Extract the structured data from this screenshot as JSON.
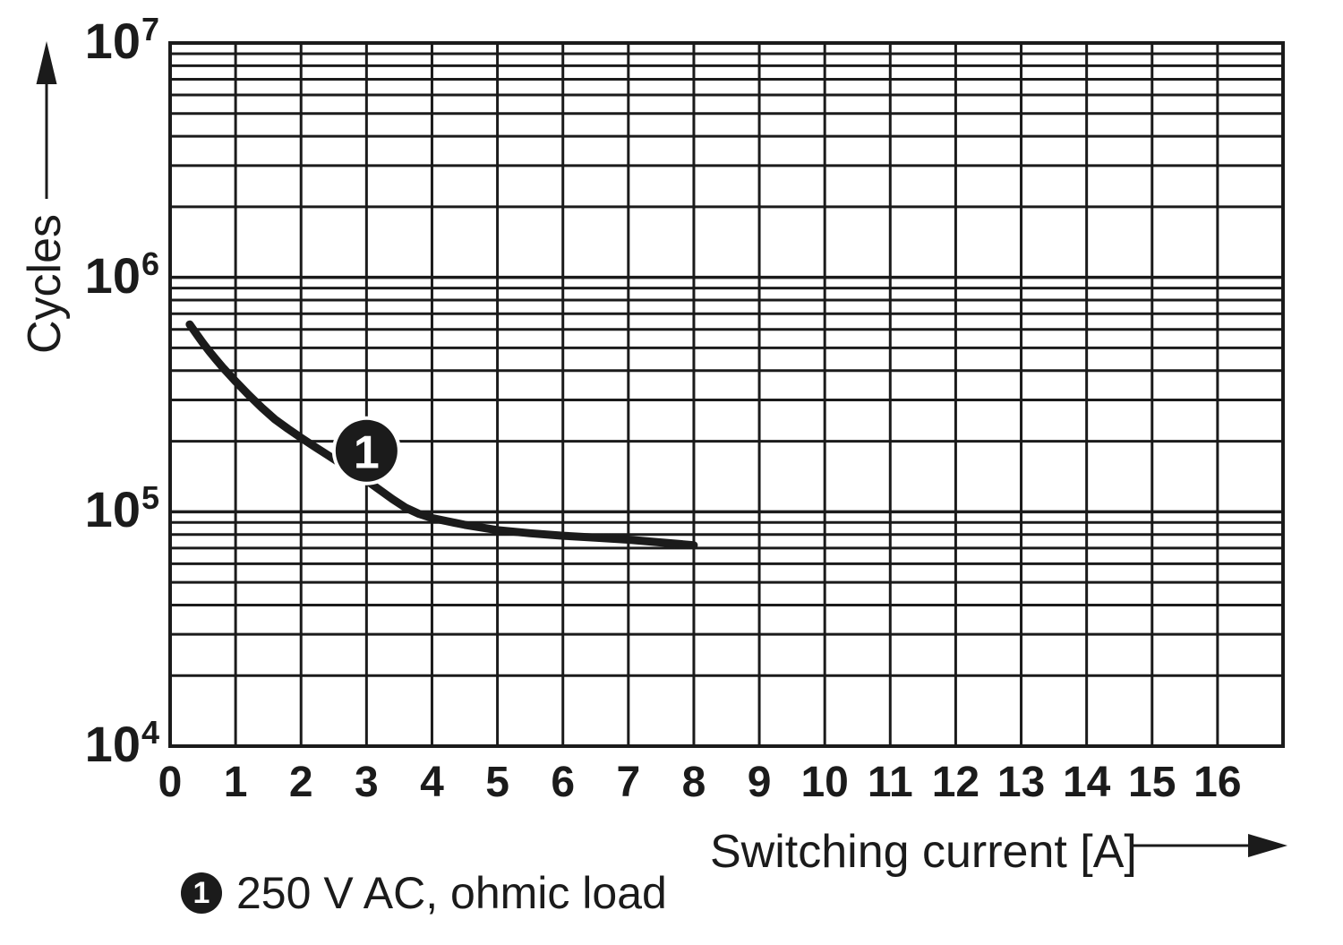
{
  "chart_data": {
    "type": "line",
    "title": "",
    "xlabel": "Switching current [A]",
    "ylabel": "Cycles",
    "xlim": [
      0,
      17
    ],
    "ylim_log10": [
      4,
      7
    ],
    "ylim": [
      10000,
      10000000
    ],
    "grid": "vertical lines every 1 A; horizontal log-minor lines 2-9 per decade",
    "legend_position": "bottom-left",
    "x_ticks": [
      0,
      1,
      2,
      3,
      4,
      5,
      6,
      7,
      8,
      9,
      10,
      11,
      12,
      13,
      14,
      15,
      16
    ],
    "y_ticks": [
      {
        "base": "10",
        "exp": "7",
        "value": 10000000
      },
      {
        "base": "10",
        "exp": "6",
        "value": 1000000
      },
      {
        "base": "10",
        "exp": "5",
        "value": 100000
      },
      {
        "base": "10",
        "exp": "4",
        "value": 10000
      }
    ],
    "series": [
      {
        "name": "1",
        "legend": "250 V AC, ohmic load",
        "marker": {
          "label": "1",
          "x": 3.0,
          "cycles": 182000
        },
        "points": [
          [
            0.3,
            630000
          ],
          [
            0.4,
            575000
          ],
          [
            0.5,
            525000
          ],
          [
            0.6,
            483000
          ],
          [
            0.7,
            447000
          ],
          [
            0.8,
            414000
          ],
          [
            0.9,
            386000
          ],
          [
            1.0,
            360000
          ],
          [
            1.2,
            315000
          ],
          [
            1.4,
            278000
          ],
          [
            1.6,
            248000
          ],
          [
            1.8,
            226000
          ],
          [
            2.0,
            207000
          ],
          [
            2.2,
            190000
          ],
          [
            2.4,
            175000
          ],
          [
            2.6,
            161000
          ],
          [
            2.8,
            148000
          ],
          [
            3.0,
            136000
          ],
          [
            3.2,
            124000
          ],
          [
            3.4,
            113000
          ],
          [
            3.6,
            104000
          ],
          [
            3.8,
            98000
          ],
          [
            4.0,
            94000
          ],
          [
            4.5,
            88000
          ],
          [
            5.0,
            83500
          ],
          [
            5.5,
            81000
          ],
          [
            6.0,
            79000
          ],
          [
            6.5,
            77500
          ],
          [
            7.0,
            76000
          ],
          [
            7.5,
            74000
          ],
          [
            8.0,
            72000
          ]
        ]
      }
    ],
    "colors": {
      "ink": "#1b1b1b",
      "background": "#ffffff",
      "marker_text": "#ffffff"
    }
  }
}
